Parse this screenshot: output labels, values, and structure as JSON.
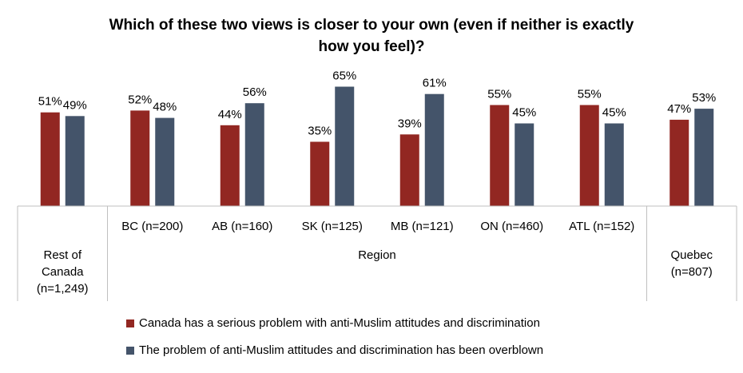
{
  "chart_data": {
    "type": "bar",
    "title": [
      "Which of these two views is closer to your own (even if neither is exactly",
      "how you feel)?"
    ],
    "categories": [
      "Rest of Canada (n=1,249)",
      "BC (n=200)",
      "AB (n=160)",
      "SK (n=125)",
      "MB (n=121)",
      "ON (n=460)",
      "ATL (n=152)",
      "Quebec (n=807)"
    ],
    "category_lines": [
      [
        "Rest of",
        "Canada",
        "(n=1,249)"
      ],
      [
        "BC (n=200)"
      ],
      [
        "AB (n=160)"
      ],
      [
        "SK (n=125)"
      ],
      [
        "MB (n=121)"
      ],
      [
        "ON (n=460)"
      ],
      [
        "ATL (n=152)"
      ],
      [
        "Quebec",
        "(n=807)"
      ]
    ],
    "group_label": "Region",
    "series": [
      {
        "name": "Canada has a serious problem with anti-Muslim attitudes and discrimination",
        "color": "#922722",
        "values": [
          51,
          52,
          44,
          35,
          39,
          55,
          55,
          47
        ],
        "labels": [
          "51%",
          "52%",
          "44%",
          "35%",
          "39%",
          "55%",
          "55%",
          "47%"
        ]
      },
      {
        "name": "The problem of anti-Muslim attitudes and discrimination has been overblown",
        "color": "#44546A",
        "values": [
          49,
          48,
          56,
          65,
          61,
          45,
          45,
          53
        ],
        "labels": [
          "49%",
          "48%",
          "56%",
          "65%",
          "61%",
          "45%",
          "45%",
          "53%"
        ]
      }
    ],
    "ylim": [
      0,
      100
    ],
    "grid": false,
    "legend_position": "bottom"
  }
}
